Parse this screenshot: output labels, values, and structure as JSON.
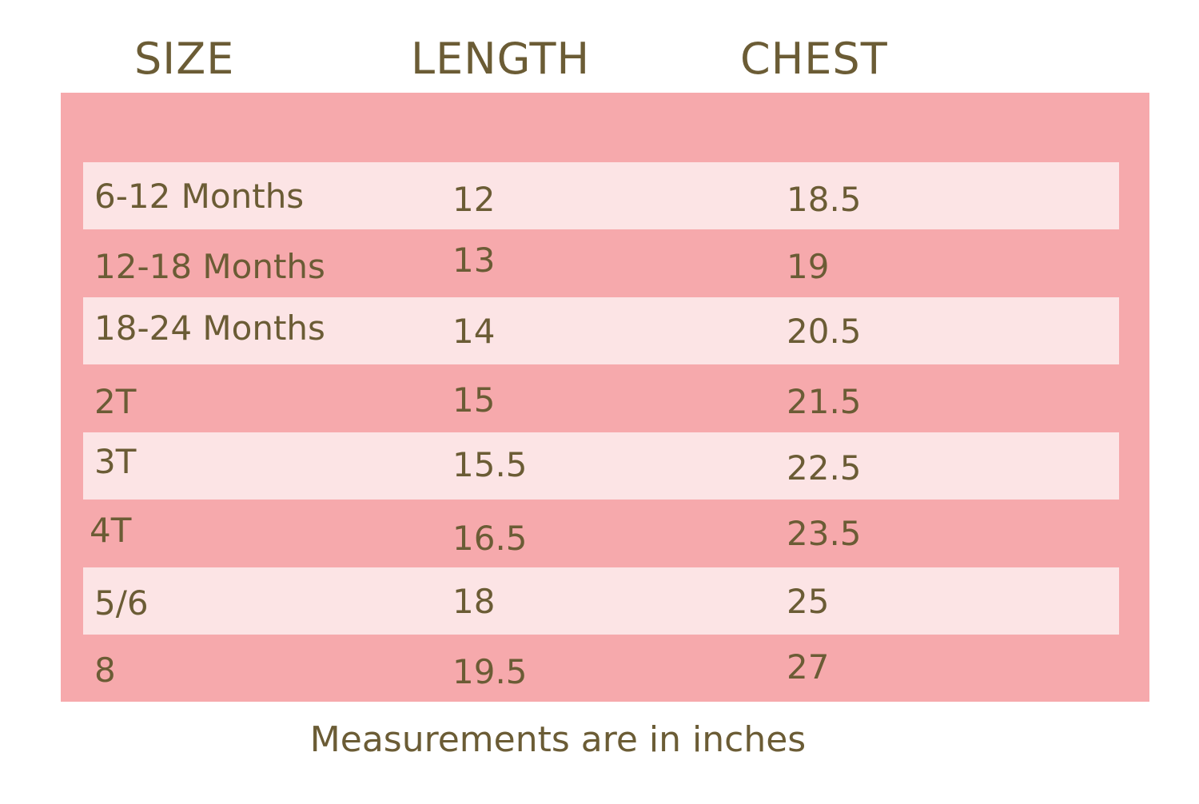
{
  "headers": {
    "size": "SIZE",
    "length": "LENGTH",
    "chest": "CHEST"
  },
  "rows": [
    {
      "size": "6-12 Months",
      "length": "12",
      "chest": "18.5"
    },
    {
      "size": "12-18 Months",
      "length": "13",
      "chest": "19"
    },
    {
      "size": "18-24 Months",
      "length": "14",
      "chest": "20.5"
    },
    {
      "size": "2T",
      "length": "15",
      "chest": "21.5"
    },
    {
      "size": "3T",
      "length": "15.5",
      "chest": "22.5"
    },
    {
      "size": "4T",
      "length": "16.5",
      "chest": "23.5"
    },
    {
      "size": "5/6",
      "length": "18",
      "chest": "25"
    },
    {
      "size": "8",
      "length": "19.5",
      "chest": "27"
    }
  ],
  "footnote": "Measurements are in inches",
  "colors": {
    "text": "#6b5c35",
    "table_background": "#f6a9ac",
    "row_highlight": "#fce4e5"
  }
}
